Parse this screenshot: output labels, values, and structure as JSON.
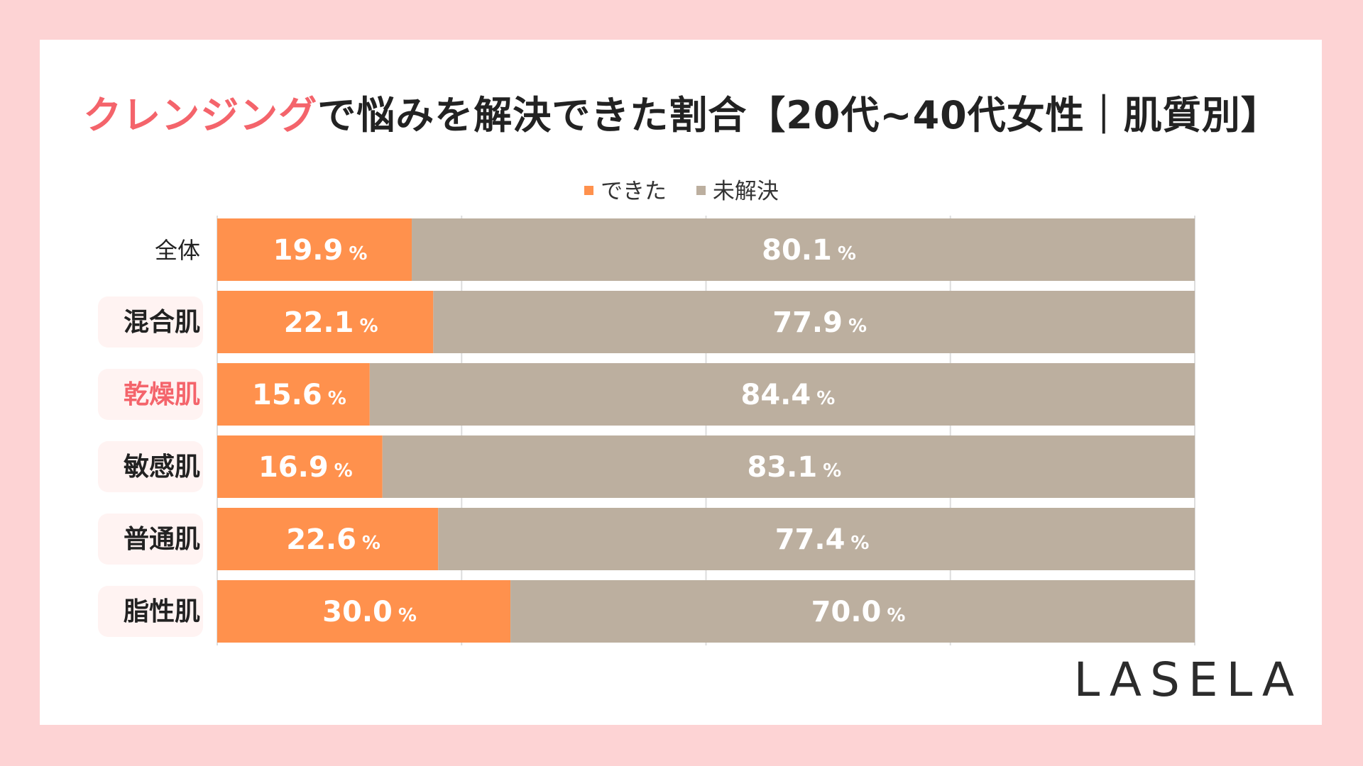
{
  "title": {
    "highlight": "クレンジング",
    "rest": "で悩みを解決できた割合【20代~40代女性｜肌質別】"
  },
  "legend": [
    {
      "label": "できた",
      "color": "#ff914d"
    },
    {
      "label": "未解決",
      "color": "#bcaf9f"
    }
  ],
  "brand": "LASELA",
  "chart_data": {
    "type": "bar",
    "orientation": "horizontal",
    "stacked": true,
    "percent_stacked": true,
    "categories": [
      "全体",
      "混合肌",
      "乾燥肌",
      "敏感肌",
      "普通肌",
      "脂性肌"
    ],
    "category_highlight": [
      false,
      true,
      true,
      true,
      true,
      true
    ],
    "category_text_colors": [
      "#222222",
      "#222222",
      "#f4646b",
      "#222222",
      "#222222",
      "#222222"
    ],
    "series": [
      {
        "name": "できた",
        "values": [
          19.9,
          22.1,
          15.6,
          16.9,
          22.6,
          30.0
        ],
        "color": "#ff914d"
      },
      {
        "name": "未解決",
        "values": [
          80.1,
          77.9,
          84.4,
          83.1,
          77.4,
          70.0
        ],
        "color": "#bcaf9f"
      }
    ],
    "value_suffix": "%",
    "xlim": [
      0,
      100
    ],
    "grid": true,
    "legend_position": "top"
  }
}
